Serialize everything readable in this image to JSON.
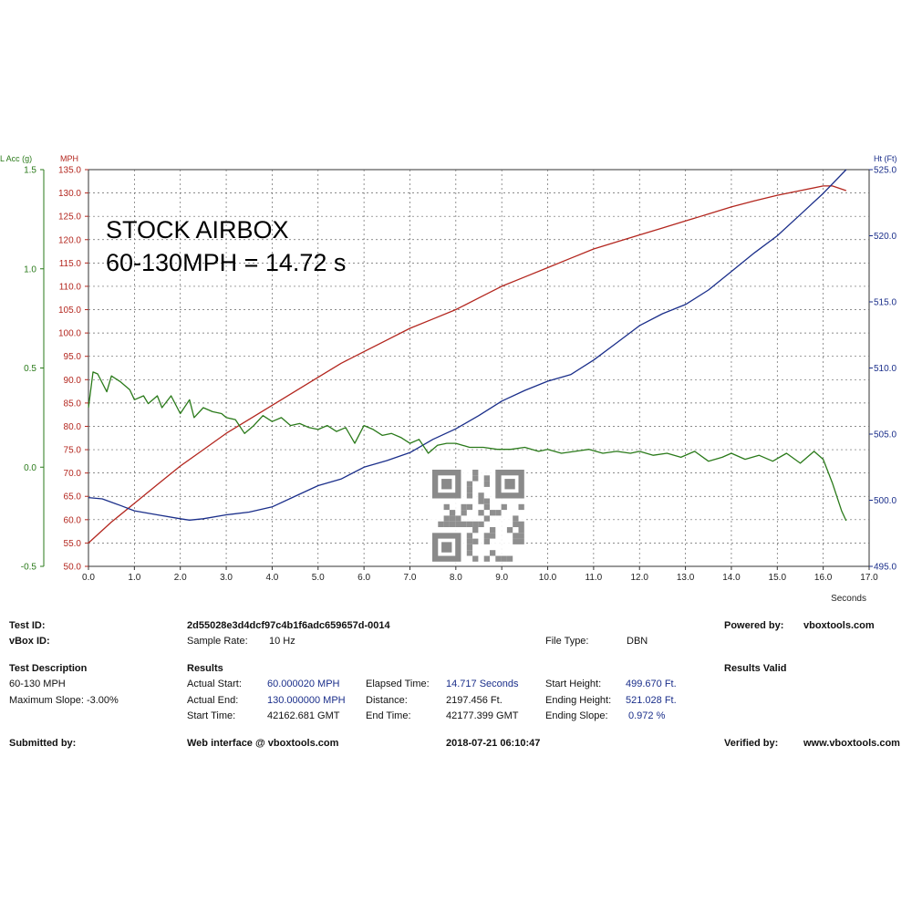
{
  "chart_data": {
    "type": "line",
    "overlay_lines": [
      "STOCK AIRBOX",
      "60-130MPH = 14.72 s"
    ],
    "xlabel": "Seconds",
    "xlim": [
      0,
      17
    ],
    "x_ticks": [
      "0.0",
      "1.0",
      "2.0",
      "3.0",
      "4.0",
      "5.0",
      "6.0",
      "7.0",
      "8.0",
      "9.0",
      "10.0",
      "11.0",
      "12.0",
      "13.0",
      "14.0",
      "15.0",
      "16.0",
      "17.0"
    ],
    "axes": {
      "lacc": {
        "label": "L Acc (g)",
        "color": "#2a7a1a",
        "lim": [
          -0.5,
          1.5
        ],
        "ticks": [
          "-0.5",
          "0.0",
          "0.5",
          "1.0",
          "1.5"
        ]
      },
      "mph": {
        "label": "MPH",
        "color": "#b3261e",
        "lim": [
          50,
          135
        ],
        "ticks": [
          "50.0",
          "55.0",
          "60.0",
          "65.0",
          "70.0",
          "75.0",
          "80.0",
          "85.0",
          "90.0",
          "95.0",
          "100.0",
          "105.0",
          "110.0",
          "115.0",
          "120.0",
          "125.0",
          "130.0",
          "135.0"
        ]
      },
      "ht": {
        "label": "Ht (Ft)",
        "color": "#1a2e8a",
        "lim": [
          495,
          525
        ],
        "ticks": [
          "495.0",
          "500.0",
          "505.0",
          "510.0",
          "515.0",
          "520.0",
          "525.0"
        ]
      }
    },
    "grid": true,
    "series": [
      {
        "axis": "mph",
        "color": "#b3261e",
        "x": [
          0,
          0.5,
          1,
          1.5,
          2,
          2.5,
          3,
          3.5,
          4,
          4.5,
          5,
          5.5,
          6,
          6.5,
          7,
          7.5,
          8,
          8.5,
          9,
          9.5,
          10,
          10.5,
          11,
          11.5,
          12,
          12.5,
          13,
          13.5,
          14,
          14.5,
          15,
          15.5,
          16,
          16.2,
          16.5
        ],
        "y": [
          55,
          59.5,
          63.5,
          67.5,
          71.5,
          75,
          78.5,
          81.5,
          84.5,
          87.5,
          90.5,
          93.5,
          96,
          98.5,
          101,
          103,
          105,
          107.5,
          110,
          112,
          114,
          116,
          118,
          119.5,
          121,
          122.5,
          124,
          125.5,
          127,
          128.3,
          129.5,
          130.5,
          131.5,
          131.5,
          130.5
        ]
      },
      {
        "axis": "ht",
        "color": "#1a2e8a",
        "x": [
          0,
          0.3,
          0.7,
          1,
          1.5,
          2,
          2.2,
          2.5,
          3,
          3.5,
          4,
          4.5,
          5,
          5.5,
          6,
          6.5,
          7,
          7.5,
          8,
          8.5,
          9,
          9.5,
          10,
          10.5,
          11,
          11.5,
          12,
          12.5,
          13,
          13.5,
          14,
          14.5,
          15,
          15.5,
          16,
          16.5
        ],
        "y": [
          500.2,
          500.1,
          499.6,
          499.2,
          498.9,
          498.6,
          498.5,
          498.6,
          498.9,
          499.1,
          499.5,
          500.3,
          501.1,
          501.6,
          502.5,
          503,
          503.6,
          504.6,
          505.4,
          506.4,
          507.5,
          508.3,
          509,
          509.5,
          510.6,
          511.9,
          513.2,
          514.1,
          514.8,
          515.9,
          517.3,
          518.7,
          520,
          521.6,
          523.2,
          525
        ]
      },
      {
        "axis": "lacc",
        "color": "#2a7a1a",
        "x": [
          0,
          0.1,
          0.2,
          0.4,
          0.5,
          0.7,
          0.9,
          1,
          1.2,
          1.3,
          1.5,
          1.6,
          1.8,
          2,
          2.2,
          2.3,
          2.5,
          2.7,
          2.9,
          3,
          3.2,
          3.4,
          3.6,
          3.8,
          4,
          4.2,
          4.4,
          4.6,
          4.8,
          5,
          5.2,
          5.4,
          5.6,
          5.8,
          6,
          6.2,
          6.4,
          6.6,
          6.8,
          7,
          7.2,
          7.4,
          7.6,
          7.8,
          8,
          8.3,
          8.6,
          8.9,
          9.2,
          9.5,
          9.8,
          10,
          10.3,
          10.6,
          10.9,
          11.2,
          11.5,
          11.8,
          12,
          12.3,
          12.6,
          12.9,
          13.2,
          13.5,
          13.8,
          14,
          14.3,
          14.6,
          14.9,
          15.2,
          15.5,
          15.8,
          16,
          16.2,
          16.4,
          16.5
        ],
        "y": [
          0.3,
          0.48,
          0.47,
          0.38,
          0.46,
          0.43,
          0.39,
          0.34,
          0.36,
          0.32,
          0.36,
          0.3,
          0.36,
          0.27,
          0.34,
          0.25,
          0.3,
          0.28,
          0.27,
          0.25,
          0.24,
          0.17,
          0.21,
          0.26,
          0.23,
          0.25,
          0.21,
          0.22,
          0.2,
          0.19,
          0.21,
          0.18,
          0.2,
          0.12,
          0.21,
          0.19,
          0.16,
          0.17,
          0.15,
          0.12,
          0.14,
          0.07,
          0.11,
          0.12,
          0.12,
          0.1,
          0.1,
          0.09,
          0.09,
          0.1,
          0.08,
          0.09,
          0.07,
          0.08,
          0.09,
          0.07,
          0.08,
          0.07,
          0.08,
          0.06,
          0.07,
          0.05,
          0.08,
          0.03,
          0.05,
          0.07,
          0.04,
          0.06,
          0.03,
          0.07,
          0.02,
          0.08,
          0.04,
          -0.08,
          -0.22,
          -0.27
        ]
      }
    ]
  },
  "report": {
    "test_id_label": "Test ID:",
    "test_id_value": "2d55028e3d4dcf97c4b1f6adc659657d-0014",
    "powered_label": "Powered by:",
    "powered_value": "vboxtools.com",
    "vbox_id_label": "vBox ID:",
    "sample_rate_label": "Sample Rate:",
    "sample_rate_value": "10 Hz",
    "file_type_label": "File Type:",
    "file_type_value": "DBN",
    "test_desc_label": "Test Description",
    "test_desc_1": "60-130 MPH",
    "test_desc_2": "Maximum Slope:  -3.00%",
    "results_label": "Results",
    "results_valid": "Results Valid",
    "actual_start_label": "Actual Start:",
    "actual_start_value": "60.000020 MPH",
    "actual_end_label": "Actual End:",
    "actual_end_value": "130.000000 MPH",
    "start_time_label": "Start Time:",
    "start_time_value": "42162.681 GMT",
    "elapsed_label": "Elapsed Time:",
    "elapsed_value": "14.717 Seconds",
    "distance_label": "Distance:",
    "distance_value": "2197.456 Ft.",
    "end_time_label": "End Time:",
    "end_time_value": "42177.399 GMT",
    "start_height_label": "Start Height:",
    "start_height_value": "499.670 Ft.",
    "ending_height_label": "Ending Height:",
    "ending_height_value": "521.028 Ft.",
    "ending_slope_label": "Ending Slope:",
    "ending_slope_value": "0.972 %",
    "submitted_label": "Submitted by:",
    "web_interface": "Web interface @ vboxtools.com",
    "datetime": "2018-07-21 06:10:47",
    "verified_label": "Verified by:",
    "verified_value": "www.vboxtools.com"
  }
}
